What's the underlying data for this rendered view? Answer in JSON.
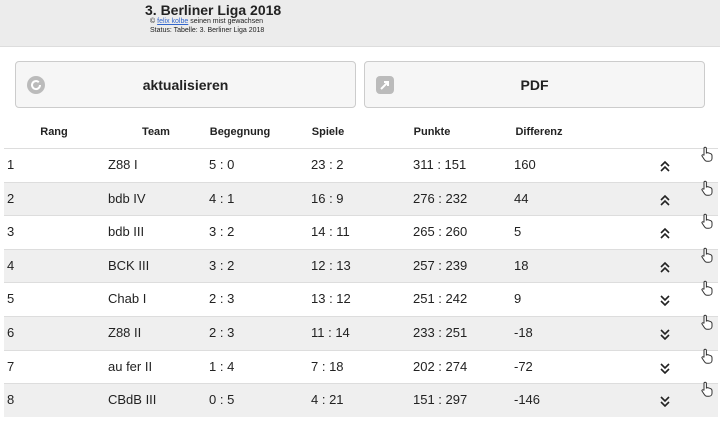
{
  "header": {
    "title": "3. Berliner Liga 2018",
    "credit_prefix": "©",
    "credit_link": "felix kolbe",
    "credit_suffix": "seinen mist gewachsen",
    "status": "Status: Tabelle: 3. Berliner Liga 2018"
  },
  "buttons": [
    "aktualisieren",
    "PDF"
  ],
  "table": {
    "columns": [
      "Rang",
      "Team",
      "Begegnung",
      "Spiele",
      "Punkte",
      "Differenz"
    ],
    "rows": [
      {
        "cells": [
          "1",
          "Z88 I",
          "5 : 0",
          "23 : 2",
          "311 : 151",
          "160"
        ],
        "arrow": "up"
      },
      {
        "cells": [
          "2",
          "bdb IV",
          "4 : 1",
          "16 : 9",
          "276 : 232",
          "44"
        ],
        "arrow": "up"
      },
      {
        "cells": [
          "3",
          "bdb III",
          "3 : 2",
          "14 : 11",
          "265 : 260",
          "5"
        ],
        "arrow": "up"
      },
      {
        "cells": [
          "4",
          "BCK III",
          "3 : 2",
          "12 : 13",
          "257 : 239",
          "18"
        ],
        "arrow": "up"
      },
      {
        "cells": [
          "5",
          "Chab I",
          "2 : 3",
          "13 : 12",
          "251 : 242",
          "9"
        ],
        "arrow": "down"
      },
      {
        "cells": [
          "6",
          "Z88 II",
          "2 : 3",
          "11 : 14",
          "233 : 251",
          "-18"
        ],
        "arrow": "down"
      },
      {
        "cells": [
          "7",
          "au fer II",
          "1 : 4",
          "7 : 18",
          "202 : 274",
          "-72"
        ],
        "arrow": "down"
      },
      {
        "cells": [
          "8",
          "CBdB III",
          "0 : 5",
          "4 : 21",
          "151 : 297",
          "-146"
        ],
        "arrow": "down"
      }
    ]
  }
}
